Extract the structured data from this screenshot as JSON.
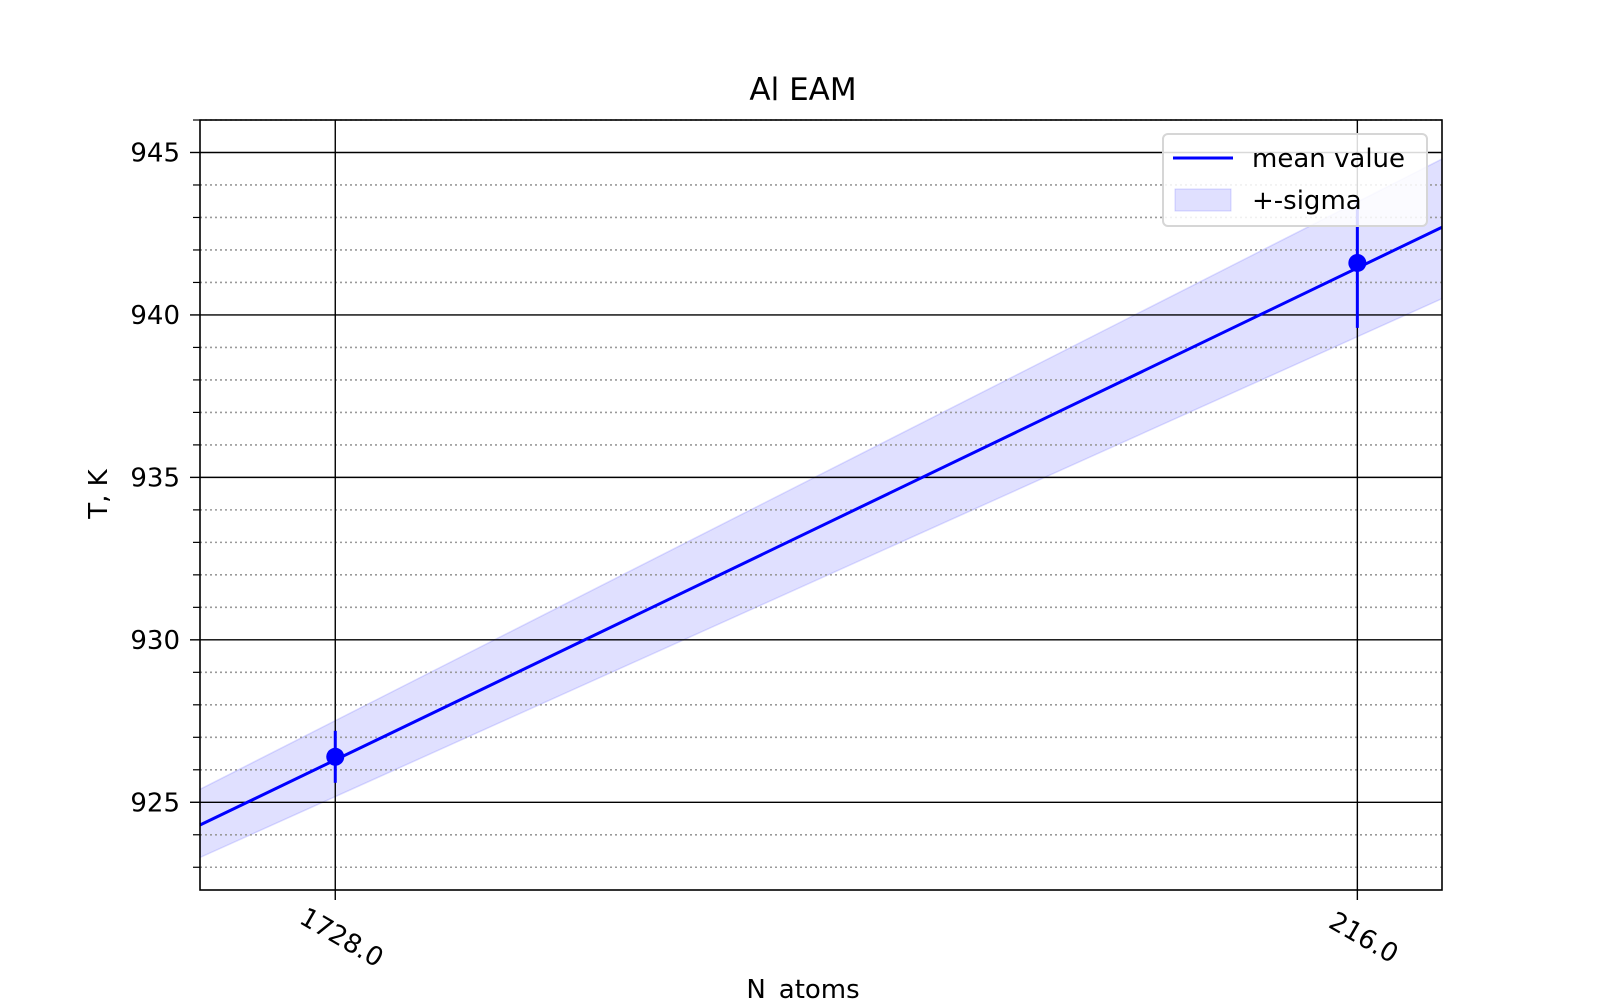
{
  "chart_data": {
    "type": "line",
    "title": "Al EAM",
    "xlabel": "N_atoms",
    "ylabel": "T, K",
    "x_ticks": [
      "1728.0",
      "216.0"
    ],
    "x_positions": [
      0.0005787,
      0.0046296
    ],
    "xlim": [
      4.26e-05,
      0.0049651
    ],
    "ylim": [
      922.3,
      946.0
    ],
    "y_ticks": [
      925,
      930,
      935,
      940,
      945
    ],
    "grid": {
      "major": true,
      "minor_y": true,
      "minor_y_step": 1
    },
    "series": [
      {
        "name": "mean value",
        "kind": "line",
        "color": "#0000ff",
        "points": [
          {
            "x": 4.26e-05,
            "y": 924.3
          },
          {
            "x": 0.0049651,
            "y": 942.7
          }
        ]
      },
      {
        "name": "+-sigma",
        "kind": "band",
        "color": "#0000ff",
        "opacity": 0.12,
        "upper": [
          {
            "x": 4.26e-05,
            "y": 925.4
          },
          {
            "x": 0.0049651,
            "y": 944.8
          }
        ],
        "lower": [
          {
            "x": 4.26e-05,
            "y": 923.3
          },
          {
            "x": 0.0049651,
            "y": 940.5
          }
        ]
      },
      {
        "name": "",
        "kind": "errorbar",
        "color": "#0000ff",
        "points": [
          {
            "x": 0.0005787,
            "y": 926.4,
            "yerr": 0.8
          },
          {
            "x": 0.0046296,
            "y": 941.6,
            "yerr": 2.0
          }
        ]
      }
    ],
    "legend": {
      "location": "top-right",
      "entries": [
        {
          "label": "mean value",
          "kind": "line",
          "color": "#0000ff"
        },
        {
          "label": "+-sigma",
          "kind": "patch",
          "color": "#0000ff"
        }
      ]
    }
  }
}
